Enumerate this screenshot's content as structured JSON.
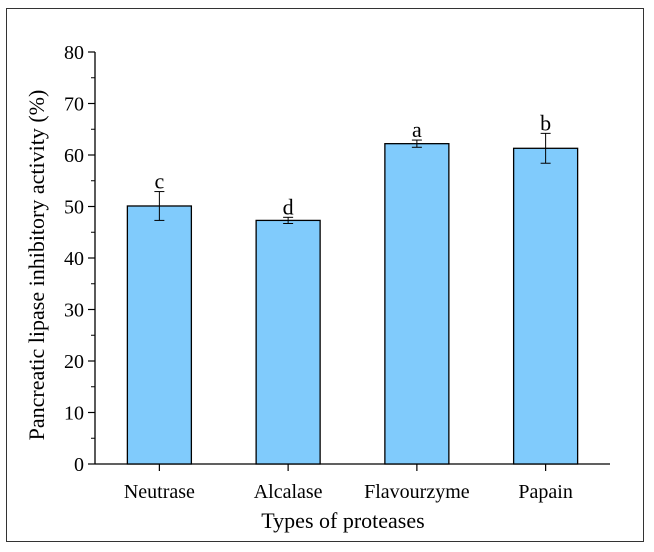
{
  "chart_data": {
    "type": "bar",
    "categories": [
      "Neutrase",
      "Alcalase",
      "Flavourzyme",
      "Papain"
    ],
    "values": [
      50.1,
      47.3,
      62.2,
      61.3
    ],
    "errors": [
      2.8,
      0.6,
      0.7,
      2.9
    ],
    "significance_letters": [
      "c",
      "d",
      "a",
      "b"
    ],
    "xlabel": "Types of proteases",
    "ylabel": "Pancreatic lipase  inhibitory activity (%)",
    "ylim": [
      0,
      80
    ],
    "yticks": [
      "0",
      "10",
      "20",
      "30",
      "40",
      "50",
      "60",
      "70",
      "80"
    ],
    "grid": false,
    "legend": "none",
    "bar_color": "#80cbfc",
    "edge_color": "#000000"
  }
}
